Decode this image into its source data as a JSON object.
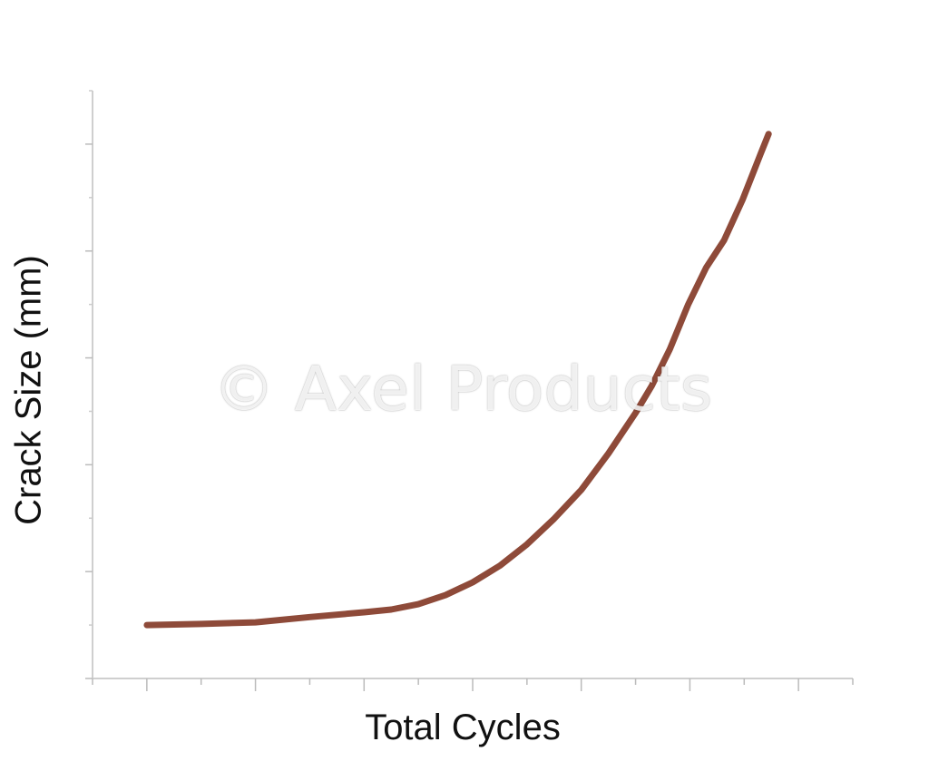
{
  "chart_data": {
    "type": "line",
    "title": "",
    "xlabel": "Total Cycles",
    "ylabel": "Crack Size (mm)",
    "xlim": [
      0,
      14
    ],
    "ylim": [
      0,
      11
    ],
    "x_ticks_major": [
      1,
      3,
      5,
      7,
      9,
      11,
      13
    ],
    "x_ticks_minor": [
      0,
      2,
      4,
      6,
      8,
      10,
      12,
      14
    ],
    "y_ticks_major": [
      0,
      2,
      4,
      6,
      8,
      10
    ],
    "y_ticks_minor": [
      1,
      3,
      5,
      7,
      9,
      11
    ],
    "tick_labels_shown": false,
    "grid": false,
    "series": [
      {
        "color": "#8e4a39",
        "x": [
          1,
          2,
          3,
          4,
          5,
          5.5,
          6,
          6.5,
          7,
          7.5,
          8,
          8.5,
          9,
          9.5,
          10,
          10.3,
          10.63,
          10.97,
          11.3,
          11.63,
          11.97,
          12.3,
          12.45
        ],
        "y": [
          1.0,
          1.02,
          1.05,
          1.15,
          1.24,
          1.29,
          1.39,
          1.56,
          1.8,
          2.11,
          2.51,
          2.99,
          3.53,
          4.21,
          4.97,
          5.48,
          6.16,
          7.0,
          7.69,
          8.2,
          8.96,
          9.81,
          10.19
        ]
      }
    ]
  },
  "watermark": "© Axel Products"
}
